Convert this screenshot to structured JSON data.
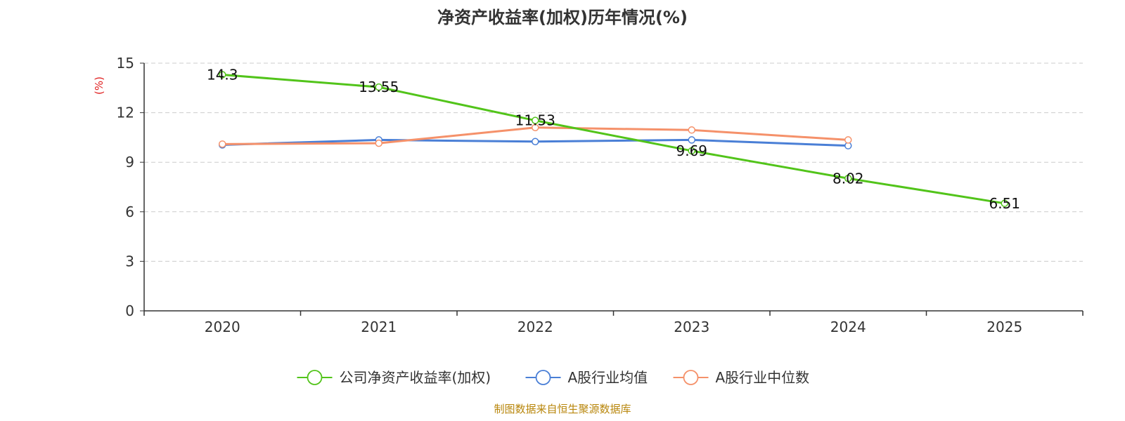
{
  "chart_data": {
    "type": "line",
    "title": "净资产收益率(加权)历年情况(%)",
    "ylabel": "(%)",
    "xlabel": "",
    "ylim": [
      0,
      15
    ],
    "yticks": [
      0,
      3,
      6,
      9,
      12,
      15
    ],
    "grid": true,
    "legend_position": "bottom",
    "categories": [
      "2020",
      "2021",
      "2022",
      "2023",
      "2024",
      "2025"
    ],
    "series": [
      {
        "name": "公司净资产收益率(加权)",
        "color": "#52c41a",
        "values": [
          14.3,
          13.55,
          11.53,
          9.69,
          8.02,
          6.51
        ],
        "labels": [
          "14.3",
          "13.55",
          "11.53",
          "9.69",
          "8.02",
          "6.51"
        ]
      },
      {
        "name": "A股行业均值",
        "color": "#4a7fd6",
        "values": [
          10.05,
          10.35,
          10.25,
          10.35,
          10.0,
          null
        ]
      },
      {
        "name": "A股行业中位数",
        "color": "#f5916a",
        "values": [
          10.1,
          10.15,
          11.1,
          10.95,
          10.35,
          null
        ]
      }
    ],
    "source": "制图数据来自恒生聚源数据库"
  }
}
